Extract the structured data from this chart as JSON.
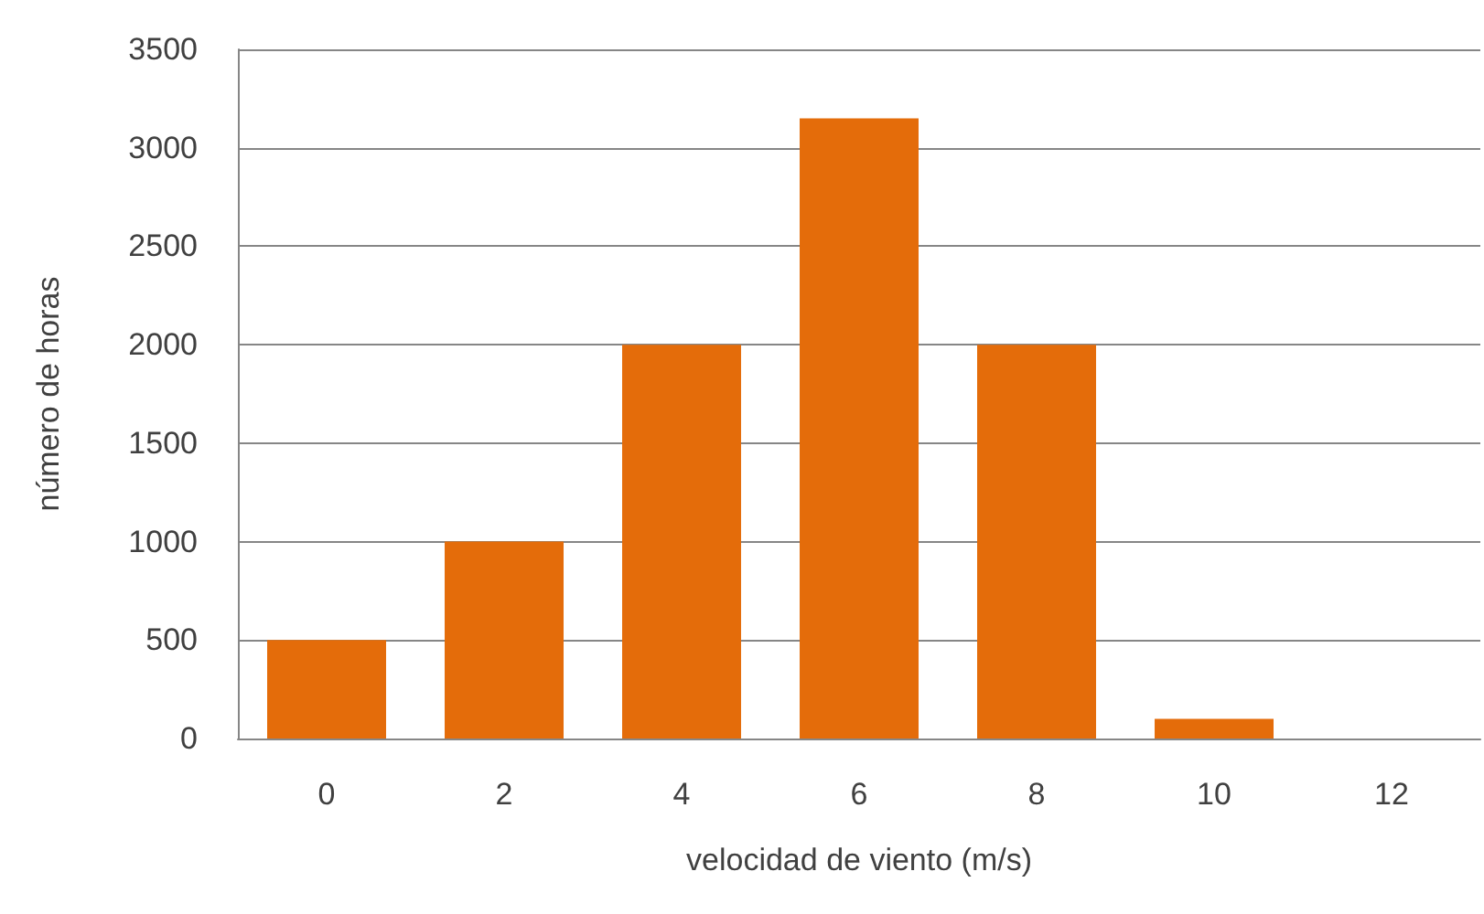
{
  "chart_data": {
    "type": "bar",
    "xlabel": "velocidad de viento (m/s)",
    "ylabel": "número de horas",
    "categories": [
      "0",
      "2",
      "4",
      "6",
      "8",
      "10",
      "12"
    ],
    "values": [
      500,
      1000,
      2000,
      3150,
      2000,
      100,
      0
    ],
    "color": "#e46c0a",
    "ylim": [
      0,
      3500
    ],
    "yticks": [
      0,
      500,
      1000,
      1500,
      2000,
      2500,
      3000,
      3500
    ],
    "grid": "y"
  }
}
